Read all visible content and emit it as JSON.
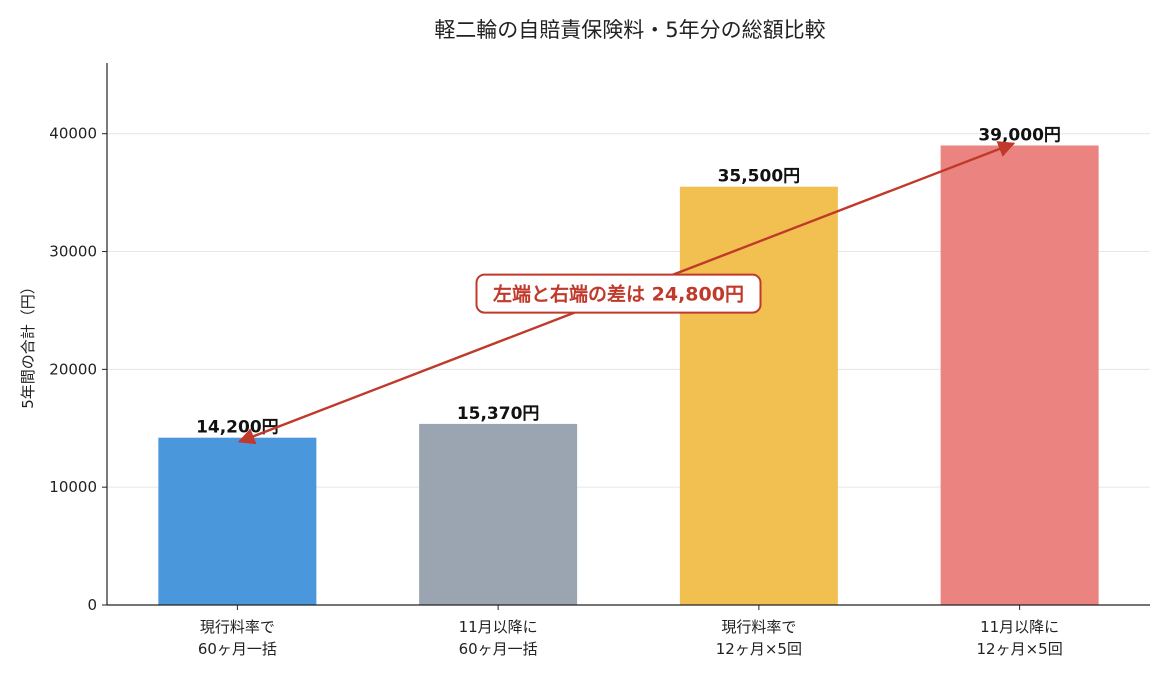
{
  "chart_data": {
    "type": "bar",
    "title": "軽二輪の自賠責保険料・5年分の総額比較",
    "xlabel": "",
    "ylabel": "5年間の合計（円）",
    "ylim": [
      0,
      46000
    ],
    "yticks": [
      0,
      10000,
      20000,
      30000,
      40000
    ],
    "grid": "y",
    "categories": [
      [
        "現行料率で",
        "60ヶ月一括"
      ],
      [
        "11月以降に",
        "60ヶ月一括"
      ],
      [
        "現行料率で",
        "12ヶ月×5回"
      ],
      [
        "11月以降に",
        "12ヶ月×5回"
      ]
    ],
    "values": [
      14200,
      15370,
      35500,
      39000
    ],
    "value_labels": [
      "14,200円",
      "15,370円",
      "35,500円",
      "39,000円"
    ],
    "colors": [
      "#4a98db",
      "#9aa5b1",
      "#f2c050",
      "#eb8480"
    ],
    "annotation": {
      "text": "左端と右端の差は 24,800円",
      "from_category": 0,
      "to_category": 3,
      "color": "#c0392b"
    }
  }
}
